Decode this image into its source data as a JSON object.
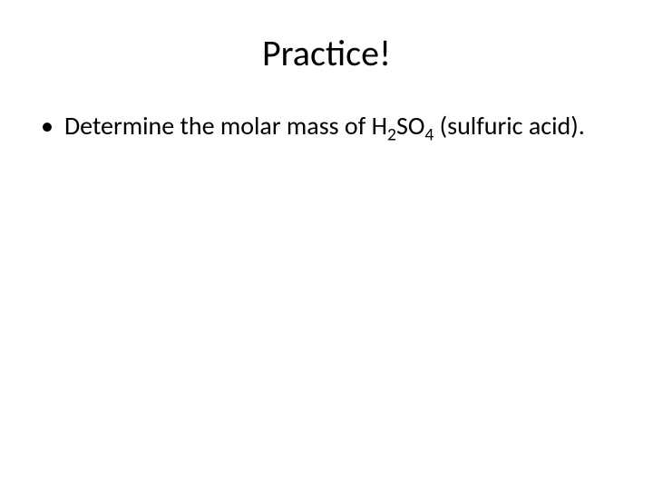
{
  "slide": {
    "title": "Practice!",
    "bullets": [
      {
        "prefix": "Determine the molar mass of H",
        "sub1": "2",
        "mid": "SO",
        "sub2": "4",
        "suffix": " (sulfuric acid)."
      }
    ]
  },
  "style": {
    "background_color": "#ffffff",
    "text_color": "#000000",
    "title_fontsize": 40,
    "body_fontsize": 28,
    "font_family": "Calibri"
  }
}
